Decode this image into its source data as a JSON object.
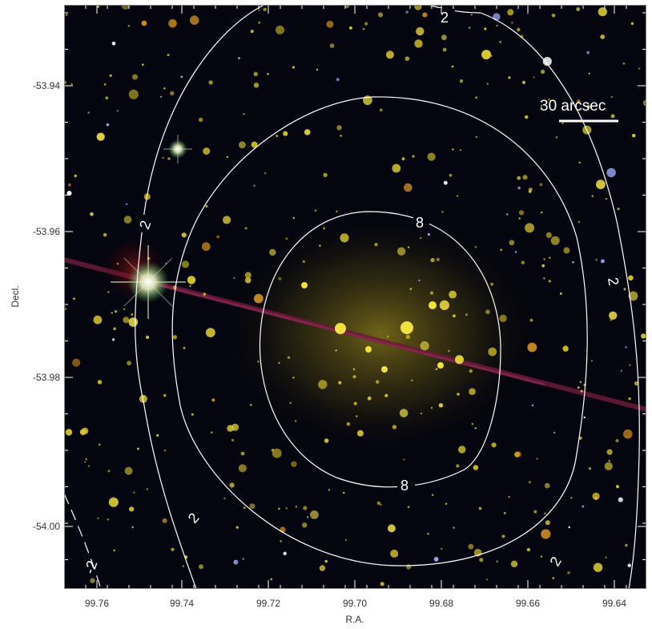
{
  "axes": {
    "xlabel": "R.A.",
    "ylabel": "Decl.",
    "x_ticks": [
      "99.76",
      "99.74",
      "99.72",
      "99.70",
      "99.68",
      "99.66",
      "99.64"
    ],
    "y_ticks": [
      "-53.94",
      "-53.96",
      "-53.98",
      "-54.00"
    ]
  },
  "scalebar": {
    "label": "30 arcsec"
  },
  "contour_labels": {
    "outer_top": "2",
    "outer_right": "2",
    "outer_bottom_right": "2",
    "middle_left": "2",
    "middle_bottom": "2",
    "inner_top": "8",
    "inner_bottom": "8",
    "dashed_corner": "-2"
  },
  "colors": {
    "sky_background": "#05050f",
    "contour": "#ffffff",
    "star_yellow": "#d8c830",
    "streak": "#6a1a3a"
  }
}
